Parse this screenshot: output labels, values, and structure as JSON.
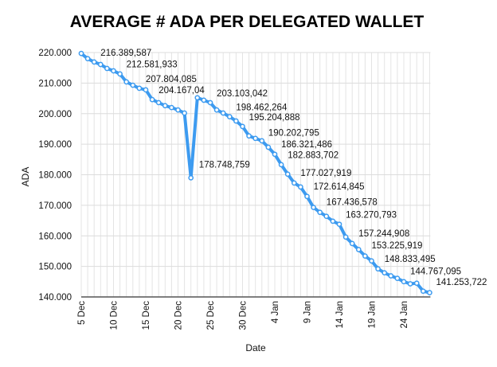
{
  "chart_data": {
    "type": "line",
    "title": "AVERAGE # ADA PER DELEGATED WALLET",
    "xlabel": "Date",
    "ylabel": "ADA",
    "ylim": [
      140000,
      220000
    ],
    "yticks": [
      {
        "value": 140000,
        "label": "140.000"
      },
      {
        "value": 150000,
        "label": "150.000"
      },
      {
        "value": 160000,
        "label": "160.000"
      },
      {
        "value": 170000,
        "label": "170.000"
      },
      {
        "value": 180000,
        "label": "180.000"
      },
      {
        "value": 190000,
        "label": "190.000"
      },
      {
        "value": 200000,
        "label": "200.000"
      },
      {
        "value": 210000,
        "label": "210.000"
      },
      {
        "value": 220000,
        "label": "220.000"
      }
    ],
    "xticks": [
      {
        "index": 0,
        "label": "5 Dec"
      },
      {
        "index": 5,
        "label": "10 Dec"
      },
      {
        "index": 10,
        "label": "15 Dec"
      },
      {
        "index": 15,
        "label": "20 Dec"
      },
      {
        "index": 20,
        "label": "25 Dec"
      },
      {
        "index": 25,
        "label": "30 Dec"
      },
      {
        "index": 30,
        "label": "4 Jan"
      },
      {
        "index": 35,
        "label": "9 Jan"
      },
      {
        "index": 40,
        "label": "14 Jan"
      },
      {
        "index": 45,
        "label": "19 Jan"
      },
      {
        "index": 50,
        "label": "24 Jan"
      }
    ],
    "grid": true,
    "series": [
      {
        "name": "ADA",
        "color": "#3d9bf0",
        "values": [
          219700,
          218000,
          216900,
          216100,
          214800,
          214000,
          213000,
          210400,
          209300,
          208300,
          207800,
          204600,
          203600,
          202600,
          202000,
          201200,
          200200,
          179000,
          205200,
          204400,
          203600,
          201200,
          200200,
          199000,
          197600,
          195800,
          192700,
          191900,
          191100,
          189000,
          186700,
          183300,
          180200,
          177300,
          176000,
          172900,
          169300,
          167700,
          166400,
          164800,
          163800,
          159600,
          157500,
          155500,
          153400,
          151800,
          149200,
          147900,
          146900,
          146100,
          145000,
          144300,
          144500,
          141900,
          141400
        ]
      }
    ],
    "annotations": [
      {
        "index": 3,
        "value": 216389.587,
        "text": "216.389,587"
      },
      {
        "index": 7,
        "value": 212581.933,
        "text": "212.581,933"
      },
      {
        "index": 10,
        "value": 207804.085,
        "text": "207.804,085"
      },
      {
        "index": 12,
        "value": 204167.04,
        "text": "204.167,04"
      },
      {
        "index": 18,
        "value": 178748.759,
        "text": "178.748,759"
      },
      {
        "index": 21,
        "value": 203103.042,
        "text": "203.103,042"
      },
      {
        "index": 24,
        "value": 198462.264,
        "text": "198.462,264"
      },
      {
        "index": 26,
        "value": 195204.888,
        "text": "195.204,888"
      },
      {
        "index": 29,
        "value": 190202.795,
        "text": "190.202,795"
      },
      {
        "index": 31,
        "value": 186321.486,
        "text": "186.321,486"
      },
      {
        "index": 32,
        "value": 182883.702,
        "text": "182.883,702"
      },
      {
        "index": 34,
        "value": 177027.919,
        "text": "177.027,919"
      },
      {
        "index": 36,
        "value": 172614.845,
        "text": "172.614,845"
      },
      {
        "index": 38,
        "value": 167436.578,
        "text": "167.436,578"
      },
      {
        "index": 41,
        "value": 163270.793,
        "text": "163.270,793"
      },
      {
        "index": 43,
        "value": 157244.908,
        "text": "157.244,908"
      },
      {
        "index": 45,
        "value": 153225.919,
        "text": "153.225,919"
      },
      {
        "index": 47,
        "value": 148833.495,
        "text": "148.833,495"
      },
      {
        "index": 51,
        "value": 144767.095,
        "text": "144.767,095"
      },
      {
        "index": 55,
        "value": 141253.722,
        "text": "141.253,722"
      }
    ]
  }
}
